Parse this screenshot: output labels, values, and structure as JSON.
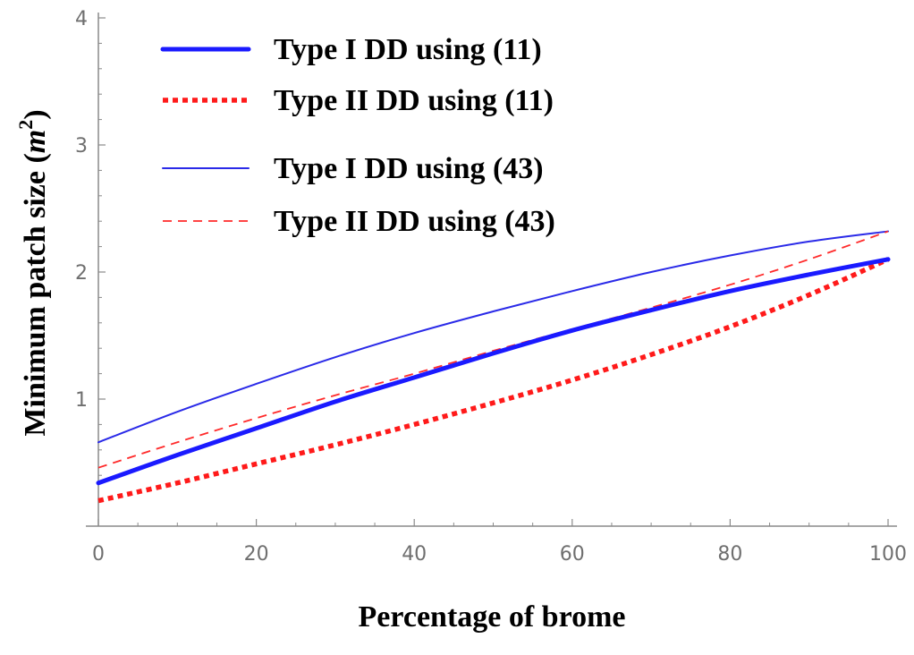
{
  "chart_data": {
    "type": "line",
    "title": "",
    "xlabel": "Percentage of brome",
    "ylabel": "Minimum patch size (",
    "ylabel_unit_base": "m",
    "ylabel_unit_exp": "2",
    "ylabel_close": ")",
    "xlim": [
      0,
      100
    ],
    "ylim": [
      0,
      4
    ],
    "x_ticks": [
      0,
      20,
      40,
      60,
      80,
      100
    ],
    "y_ticks": [
      1,
      2,
      3,
      4
    ],
    "x_tick_labels": [
      "0",
      "20",
      "40",
      "60",
      "80",
      "100"
    ],
    "y_tick_labels": [
      "1",
      "2",
      "3",
      "4"
    ],
    "grid": false,
    "legend_position": "top-left",
    "x": [
      0,
      10,
      20,
      30,
      40,
      50,
      60,
      70,
      80,
      90,
      100
    ],
    "series": [
      {
        "name": "Type I DD using (11)",
        "color": "#1a1aff",
        "style": "thick-solid",
        "values": [
          0.34,
          0.56,
          0.77,
          0.98,
          1.17,
          1.36,
          1.54,
          1.7,
          1.85,
          1.98,
          2.1
        ]
      },
      {
        "name": "Type II DD using (11)",
        "color": "#ff1a1a",
        "style": "thick-dotted",
        "values": [
          0.2,
          0.34,
          0.49,
          0.64,
          0.8,
          0.97,
          1.15,
          1.35,
          1.57,
          1.82,
          2.1
        ]
      },
      {
        "name": "Type I DD using (43)",
        "color": "#2a2ae8",
        "style": "thin-solid",
        "values": [
          0.66,
          0.9,
          1.12,
          1.33,
          1.52,
          1.69,
          1.85,
          2.0,
          2.13,
          2.24,
          2.32
        ]
      },
      {
        "name": "Type II DD using (43)",
        "color": "#ff2a2a",
        "style": "thin-dashed",
        "values": [
          0.46,
          0.66,
          0.85,
          1.03,
          1.2,
          1.38,
          1.55,
          1.72,
          1.9,
          2.1,
          2.32
        ]
      }
    ]
  }
}
